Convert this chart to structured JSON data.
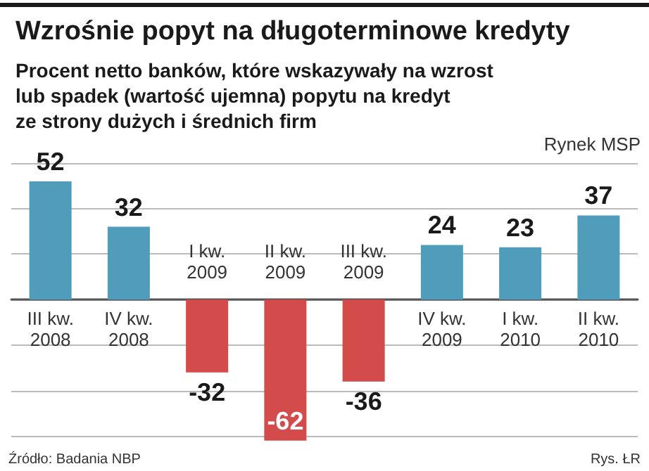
{
  "chart_data": {
    "type": "bar",
    "title": "Wzrośnie popyt na długoterminowe kredyty",
    "subtitle": "Procent netto banków, które wskazywały na wzrost\nlub spadek (wartość ujemna) popytu na kredyt\nze strony dużych i średnich firm",
    "annotations": [
      "Rynek MSP",
      "Źródło: Badania NBP",
      "Rys. ŁR"
    ],
    "categories": [
      "III kw.\n2008",
      "IV kw.\n2008",
      "I kw.\n2009",
      "II kw.\n2009",
      "III kw.\n2009",
      "IV kw.\n2009",
      "I kw.\n2010",
      "II kw.\n2010"
    ],
    "values": [
      52,
      32,
      -32,
      -62,
      -36,
      24,
      23,
      37
    ],
    "colors": [
      "#4f9dba",
      "#4f9dba",
      "#d34b4b",
      "#d34b4b",
      "#d34b4b",
      "#4f9dba",
      "#4f9dba",
      "#4f9dba"
    ],
    "data_labels": true,
    "ylim": [
      -63,
      60
    ],
    "yticks": [
      {
        "value": -60,
        "label": null
      },
      {
        "value": -40,
        "label": null
      },
      {
        "value": -20,
        "label": null
      },
      {
        "value": 0,
        "label": null
      },
      {
        "value": 20,
        "label": null
      },
      {
        "value": 40,
        "label": null
      },
      {
        "value": 60,
        "label": null
      }
    ],
    "grid": "y"
  }
}
